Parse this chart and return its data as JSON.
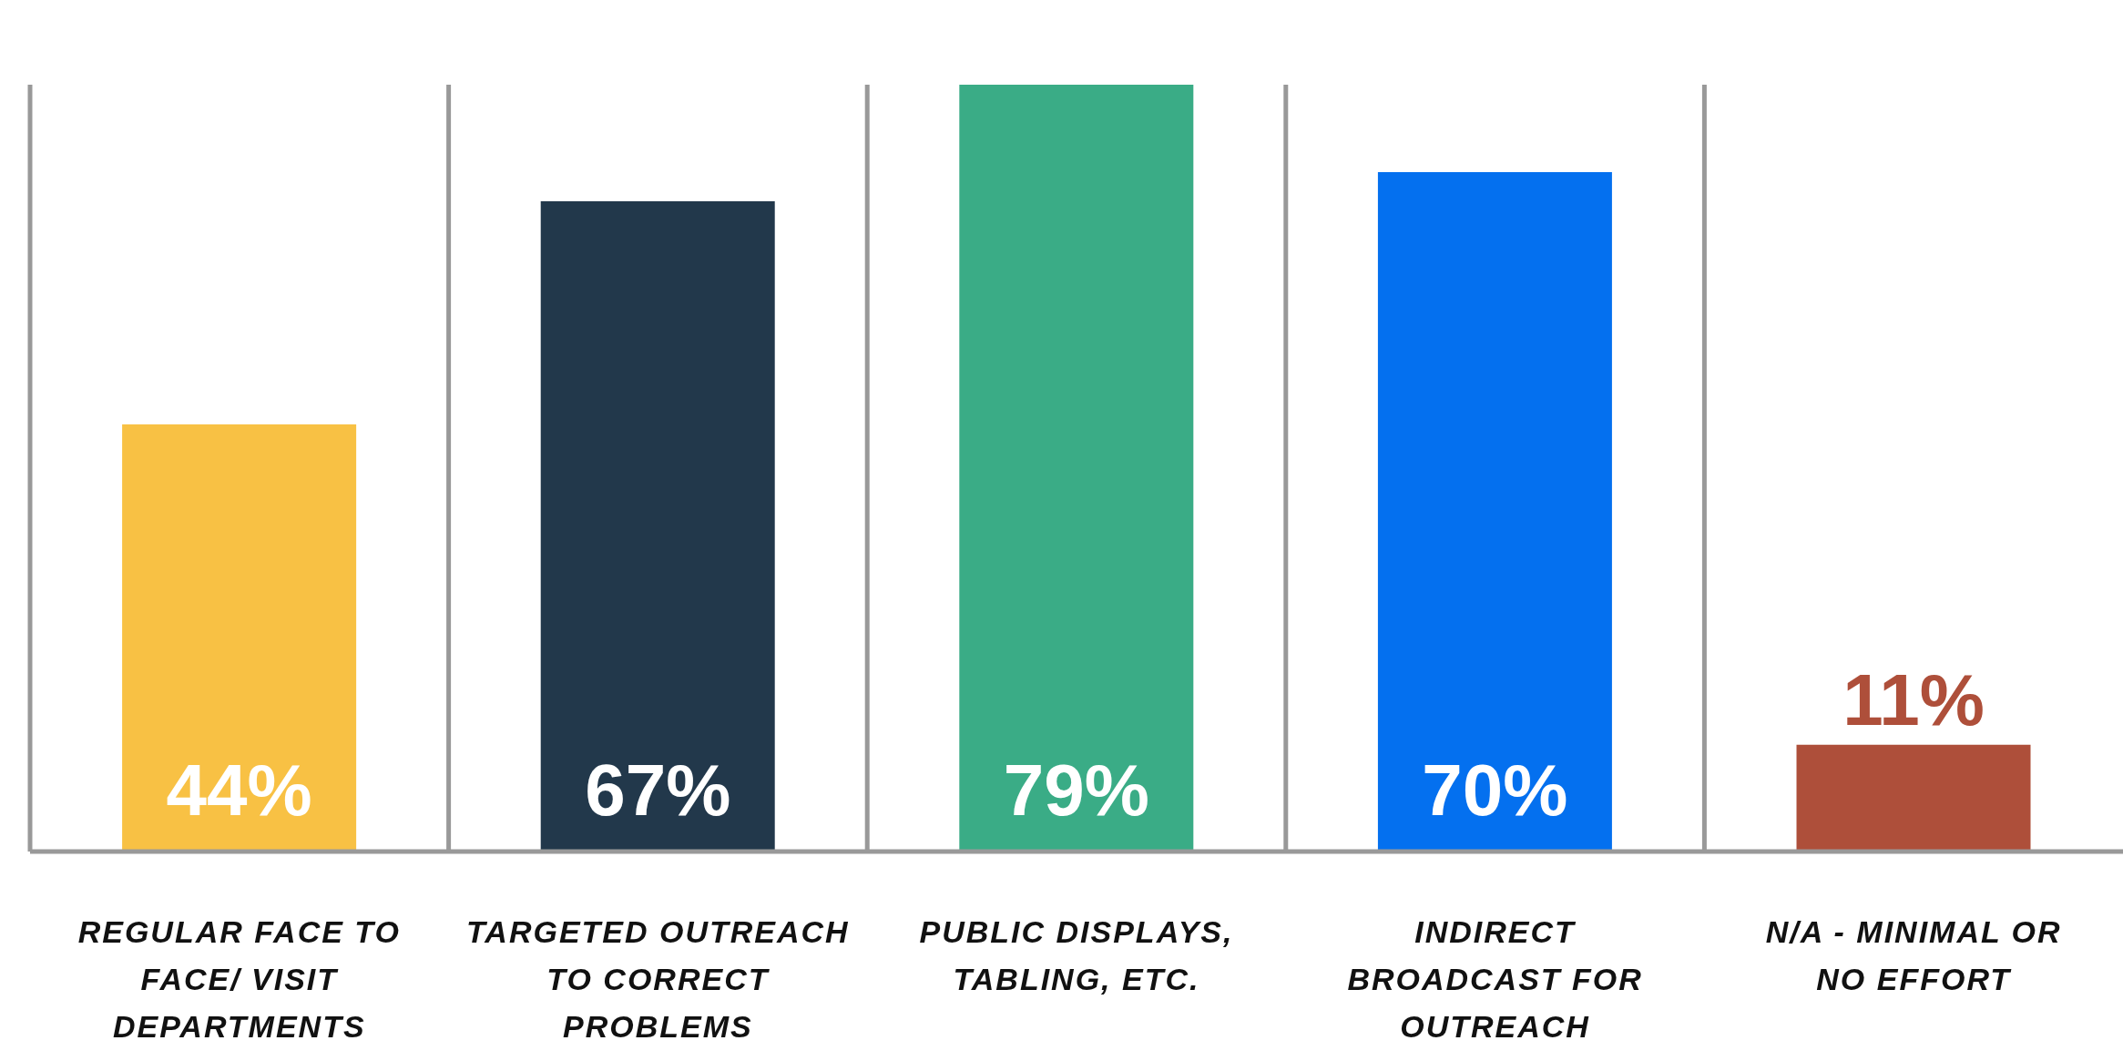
{
  "chart_data": {
    "type": "bar",
    "categories": [
      "REGULAR FACE TO FACE/ VISIT DEPARTMENTS",
      "TARGETED OUTREACH TO CORRECT PROBLEMS",
      "PUBLIC DISPLAYS, TABLING, ETC.",
      "INDIRECT BROADCAST FOR OUTREACH",
      "N/A - MINIMAL OR NO EFFORT"
    ],
    "values": [
      44,
      67,
      79,
      70,
      11
    ],
    "colors": [
      "#f8c144",
      "#22384b",
      "#3aac86",
      "#0470ef",
      "#ae4f3a"
    ],
    "value_labels": [
      "44%",
      "67%",
      "79%",
      "70%",
      "11%"
    ],
    "grid": "x",
    "tick_labels": "x"
  }
}
